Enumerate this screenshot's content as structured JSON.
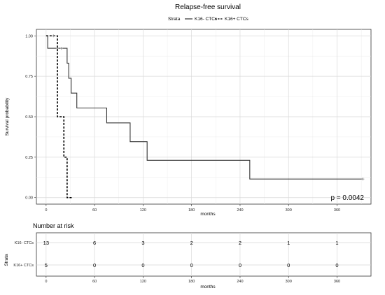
{
  "title": "Relapse-free survival",
  "legend": {
    "title": "Strata",
    "items": [
      {
        "label": "K16- CTCs",
        "style": "solid"
      },
      {
        "label": "K16+ CTCs",
        "style": "dashed"
      }
    ]
  },
  "pvalue_text": "p = 0.0042",
  "risk_table": {
    "title": "Number at risk",
    "ylabel": "Strata",
    "xlabel": "months",
    "times": [
      0,
      60,
      120,
      180,
      240,
      300,
      360
    ],
    "rows": [
      {
        "label": "K16- CTCs",
        "values": [
          "13",
          "6",
          "3",
          "2",
          "2",
          "1",
          "1"
        ]
      },
      {
        "label": "K16+ CTCs",
        "values": [
          "5",
          "0",
          "0",
          "0",
          "0",
          "0",
          "0"
        ]
      }
    ]
  },
  "chart_data": {
    "type": "line",
    "title": "Relapse-free survival",
    "xlabel": "months",
    "ylabel": "Survival probability",
    "xlim": [
      -12,
      402
    ],
    "ylim": [
      -0.04,
      1.04
    ],
    "xticks": [
      0,
      60,
      120,
      180,
      240,
      300,
      360
    ],
    "yticks": [
      0.0,
      0.25,
      0.5,
      0.75,
      1.0
    ],
    "ytick_labels": [
      "0.00",
      "0.25",
      "0.50",
      "0.75",
      "1.00"
    ],
    "grid": true,
    "legend_position": "top",
    "series": [
      {
        "name": "K16- CTCs",
        "style": "solid",
        "color": "#333333",
        "x": [
          0,
          2,
          20,
          26,
          28,
          31,
          38,
          75,
          104,
          125,
          252,
          392
        ],
        "y": [
          1.0,
          0.923,
          0.923,
          0.831,
          0.738,
          0.646,
          0.554,
          0.462,
          0.346,
          0.231,
          0.115,
          0.115
        ],
        "censored": [
          [
            14,
            0.923
          ],
          [
            19,
            0.923
          ],
          [
            392,
            0.115
          ]
        ]
      },
      {
        "name": "K16+ CTCs",
        "style": "dashed",
        "color": "#000000",
        "x": [
          0,
          9,
          14,
          22,
          26,
          33
        ],
        "y": [
          1.0,
          1.0,
          0.5,
          0.25,
          0.0,
          0.0
        ],
        "censored": [
          [
            9,
            1.0
          ]
        ]
      }
    ]
  }
}
